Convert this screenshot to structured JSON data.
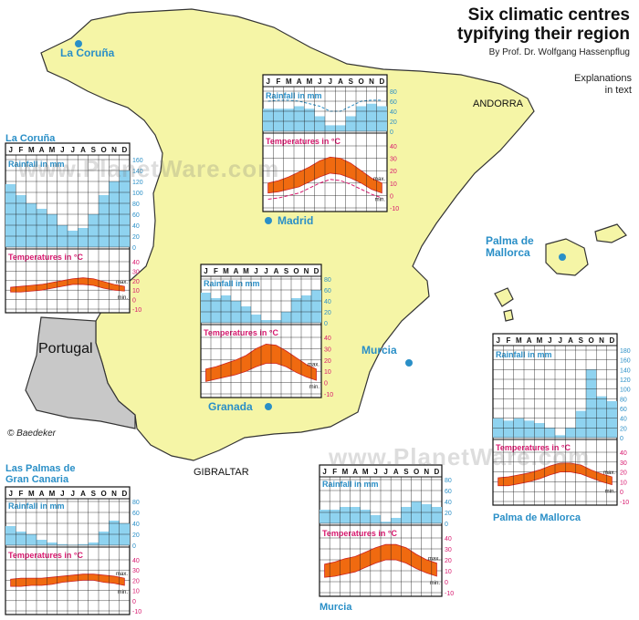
{
  "title_line1": "Six climatic centres",
  "title_line2": "typifying their region",
  "author": "By Prof. Dr. Wolfgang Hassenpflug",
  "explanations_line1": "Explanations",
  "explanations_line2": "in text",
  "copyright": "© Baedeker",
  "watermark": "www.PlanetWare.com",
  "map_labels": {
    "andorra": "ANDORRA",
    "gibraltar": "GIBRALTAR",
    "portugal": "Portugal"
  },
  "cities": {
    "coruna": "La Coruña",
    "madrid": "Madrid",
    "palma_line1": "Palma de",
    "palma_line2": "Mallorca",
    "murcia": "Murcia",
    "granada": "Granada"
  },
  "colors": {
    "land": "#f5f5a6",
    "portugal": "#c8c8c8",
    "sea": "#ffffff",
    "rain": "#8fd3f0",
    "temp": "#f06a10",
    "rainlabel": "#2a8fc7",
    "templabel": "#d8186e"
  },
  "chart_common": {
    "months": [
      "J",
      "F",
      "M",
      "A",
      "M",
      "J",
      "J",
      "A",
      "S",
      "O",
      "N",
      "D"
    ],
    "rain_label": "Rainfall in mm",
    "temp_label": "Temperatures in °C",
    "max_label": "max.",
    "min_label": "min."
  },
  "chart_data": [
    {
      "type": "area",
      "id": "coruna",
      "title": "La Coruña",
      "rain": {
        "ylim": [
          0,
          160
        ],
        "ticks": [
          0,
          20,
          40,
          60,
          80,
          100,
          120,
          140,
          160
        ],
        "values": [
          115,
          95,
          80,
          70,
          60,
          40,
          30,
          35,
          60,
          95,
          120,
          140
        ]
      },
      "temp": {
        "ylim": [
          -10,
          40
        ],
        "ticks": [
          -10,
          0,
          10,
          20,
          30,
          40
        ],
        "max": [
          13,
          14,
          15,
          16,
          18,
          20,
          22,
          23,
          22,
          19,
          16,
          14
        ],
        "min": [
          8,
          8,
          9,
          10,
          12,
          14,
          16,
          16,
          15,
          12,
          10,
          9
        ]
      }
    },
    {
      "type": "area",
      "id": "madrid",
      "title": "Madrid",
      "rain": {
        "ylim": [
          0,
          80
        ],
        "ticks": [
          0,
          20,
          40,
          60,
          80
        ],
        "values": [
          45,
          45,
          45,
          50,
          45,
          30,
          12,
          12,
          30,
          50,
          55,
          50
        ],
        "kasserine": [
          60,
          62,
          62,
          60,
          55,
          50,
          40,
          40,
          50,
          60,
          62,
          62
        ]
      },
      "temp": {
        "ylim": [
          -10,
          40
        ],
        "ticks": [
          -10,
          0,
          10,
          20,
          30,
          40
        ],
        "max": [
          10,
          12,
          15,
          19,
          23,
          28,
          31,
          30,
          26,
          20,
          14,
          10
        ],
        "min": [
          2,
          3,
          5,
          7,
          11,
          15,
          18,
          17,
          14,
          10,
          5,
          2
        ],
        "kasserine_min": [
          -3,
          -2,
          0,
          2,
          6,
          10,
          13,
          12,
          9,
          5,
          1,
          -2
        ]
      }
    },
    {
      "type": "area",
      "id": "granada",
      "title": "Granada",
      "rain": {
        "ylim": [
          0,
          80
        ],
        "ticks": [
          0,
          20,
          40,
          60,
          80
        ],
        "values": [
          55,
          45,
          50,
          40,
          30,
          15,
          5,
          5,
          20,
          45,
          50,
          60
        ]
      },
      "temp": {
        "ylim": [
          -10,
          40
        ],
        "ticks": [
          -10,
          0,
          10,
          20,
          30,
          40
        ],
        "max": [
          12,
          14,
          17,
          20,
          24,
          30,
          34,
          33,
          28,
          22,
          16,
          12
        ],
        "min": [
          1,
          3,
          5,
          7,
          10,
          14,
          17,
          17,
          14,
          9,
          5,
          2
        ]
      }
    },
    {
      "type": "area",
      "id": "palma",
      "title": "Palma de Mallorca",
      "rain": {
        "ylim": [
          0,
          180
        ],
        "ticks": [
          0,
          20,
          40,
          60,
          80,
          100,
          120,
          140,
          160,
          180
        ],
        "values": [
          40,
          35,
          40,
          35,
          30,
          20,
          5,
          20,
          55,
          140,
          85,
          75
        ]
      },
      "temp": {
        "ylim": [
          -10,
          40
        ],
        "ticks": [
          -10,
          0,
          10,
          20,
          30,
          40
        ],
        "max": [
          14,
          15,
          17,
          19,
          22,
          26,
          29,
          29,
          27,
          22,
          18,
          15
        ],
        "min": [
          6,
          6,
          8,
          10,
          13,
          17,
          20,
          20,
          18,
          14,
          10,
          7
        ]
      }
    },
    {
      "type": "area",
      "id": "laspalmas",
      "title": "Las Palmas de Gran Canaria",
      "rain": {
        "ylim": [
          0,
          80
        ],
        "ticks": [
          0,
          20,
          40,
          60,
          80
        ],
        "values": [
          35,
          25,
          20,
          10,
          5,
          2,
          1,
          2,
          5,
          25,
          45,
          40
        ]
      },
      "temp": {
        "ylim": [
          -10,
          40
        ],
        "ticks": [
          -10,
          0,
          10,
          20,
          30,
          40
        ],
        "max": [
          21,
          22,
          22,
          22,
          23,
          24,
          25,
          26,
          26,
          25,
          24,
          22
        ],
        "min": [
          14,
          14,
          15,
          15,
          16,
          18,
          19,
          20,
          20,
          18,
          17,
          15
        ]
      }
    },
    {
      "type": "area",
      "id": "murcia",
      "title": "Murcia",
      "rain": {
        "ylim": [
          0,
          80
        ],
        "ticks": [
          0,
          20,
          40,
          60,
          80
        ],
        "values": [
          25,
          25,
          30,
          30,
          25,
          15,
          3,
          10,
          30,
          40,
          35,
          30
        ]
      },
      "temp": {
        "ylim": [
          -10,
          40
        ],
        "ticks": [
          -10,
          0,
          10,
          20,
          30,
          40
        ],
        "max": [
          16,
          18,
          21,
          23,
          27,
          31,
          34,
          34,
          31,
          25,
          20,
          17
        ],
        "min": [
          4,
          5,
          7,
          9,
          13,
          17,
          20,
          20,
          17,
          12,
          8,
          5
        ]
      }
    }
  ]
}
